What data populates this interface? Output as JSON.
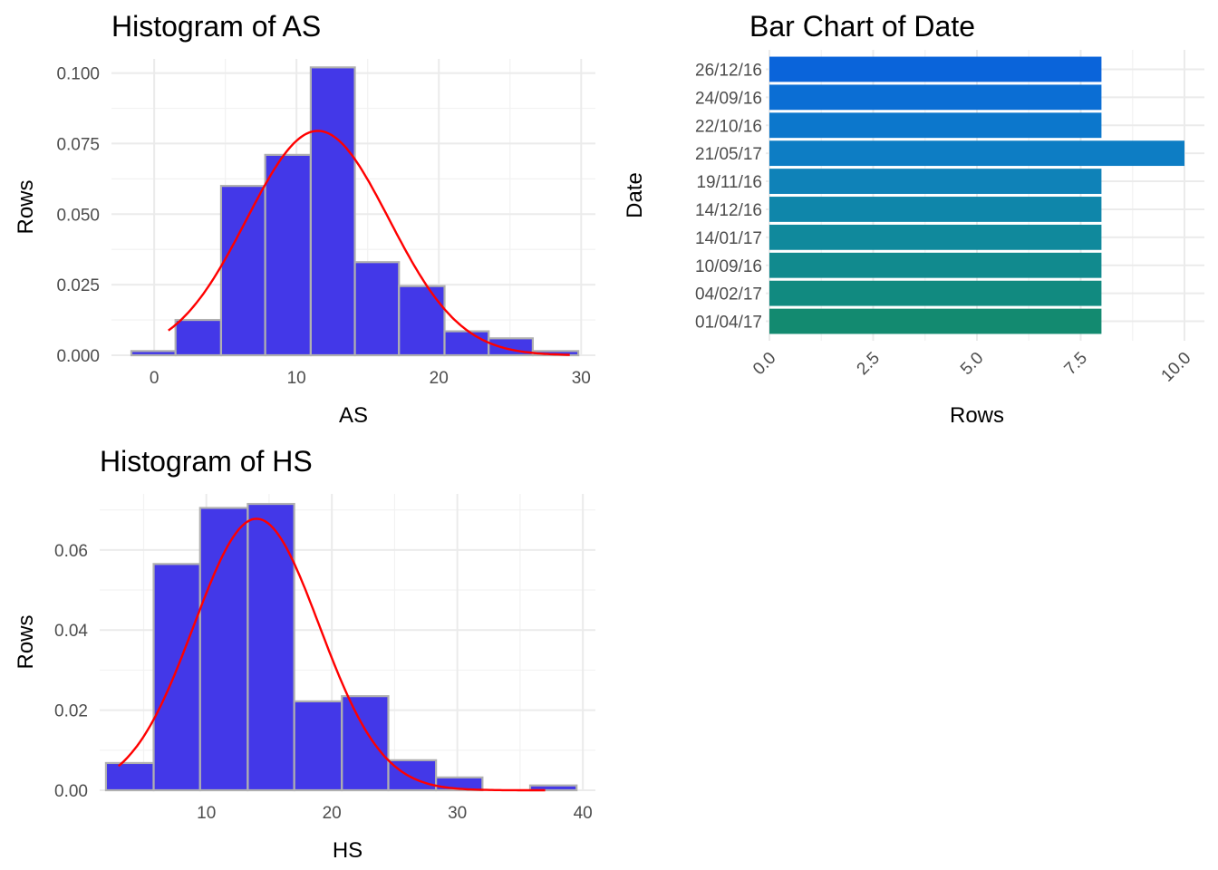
{
  "chart_data": [
    {
      "type": "histogram",
      "title": "Histogram of AS",
      "xlabel": "AS",
      "ylabel": "Rows",
      "xlim": [
        -3,
        31
      ],
      "ylim": [
        0,
        0.105
      ],
      "x_ticks": [
        0,
        10,
        20,
        30
      ],
      "y_ticks": [
        0.0,
        0.025,
        0.05,
        0.075,
        0.1
      ],
      "y_tick_labels": [
        "0.000",
        "0.025",
        "0.050",
        "0.075",
        "0.100"
      ],
      "bins": [
        {
          "x0": -1.6,
          "x1": 1.5,
          "value": 0.0015
        },
        {
          "x0": 1.5,
          "x1": 4.7,
          "value": 0.0125
        },
        {
          "x0": 4.7,
          "x1": 7.8,
          "value": 0.06
        },
        {
          "x0": 7.8,
          "x1": 11.0,
          "value": 0.071
        },
        {
          "x0": 11.0,
          "x1": 14.1,
          "value": 0.102
        },
        {
          "x0": 14.1,
          "x1": 17.2,
          "value": 0.033
        },
        {
          "x0": 17.2,
          "x1": 20.4,
          "value": 0.0245
        },
        {
          "x0": 20.4,
          "x1": 23.5,
          "value": 0.0085
        },
        {
          "x0": 23.5,
          "x1": 26.6,
          "value": 0.006
        },
        {
          "x0": 26.6,
          "x1": 29.8,
          "value": 0.0015
        }
      ],
      "density": {
        "mean": 11.5,
        "sd": 5.0,
        "peak": 0.0795,
        "x_from": 1.0,
        "x_to": 29.2
      },
      "bar_color": "#4338e8",
      "bar_border": "#b0b0b0",
      "curve_color": "#ff0000"
    },
    {
      "type": "bar",
      "orientation": "horizontal",
      "title": "Bar Chart of Date",
      "xlabel": "Rows",
      "ylabel": "Date",
      "xlim": [
        0,
        10
      ],
      "x_ticks": [
        0,
        2.5,
        5,
        7.5,
        10
      ],
      "x_tick_labels": [
        "0.0",
        "2.5",
        "5.0",
        "7.5",
        "10.0"
      ],
      "categories": [
        "26/12/16",
        "24/09/16",
        "22/10/16",
        "21/05/17",
        "19/11/16",
        "14/12/16",
        "14/01/17",
        "10/09/16",
        "04/02/17",
        "01/04/17"
      ],
      "values": [
        8,
        8,
        8,
        10,
        8,
        8,
        8,
        8,
        8,
        8
      ],
      "colors": [
        "#0a64da",
        "#0b6ed4",
        "#0c77cc",
        "#0d7dc4",
        "#0f82b8",
        "#0f86aa",
        "#10899c",
        "#118a8e",
        "#118a80",
        "#138a70"
      ]
    },
    {
      "type": "histogram",
      "title": "Histogram of HS",
      "xlabel": "HS",
      "ylabel": "Rows",
      "xlim": [
        1.5,
        41
      ],
      "ylim": [
        0,
        0.074
      ],
      "x_ticks": [
        10,
        20,
        30,
        40
      ],
      "y_ticks": [
        0.0,
        0.02,
        0.04,
        0.06
      ],
      "y_tick_labels": [
        "0.00",
        "0.02",
        "0.04",
        "0.06"
      ],
      "bins": [
        {
          "x0": 2.0,
          "x1": 5.8,
          "value": 0.0068
        },
        {
          "x0": 5.8,
          "x1": 9.5,
          "value": 0.0565
        },
        {
          "x0": 9.5,
          "x1": 13.3,
          "value": 0.0705
        },
        {
          "x0": 13.3,
          "x1": 17.0,
          "value": 0.0715
        },
        {
          "x0": 17.0,
          "x1": 20.8,
          "value": 0.0222
        },
        {
          "x0": 20.8,
          "x1": 24.5,
          "value": 0.0235
        },
        {
          "x0": 24.5,
          "x1": 28.3,
          "value": 0.0075
        },
        {
          "x0": 28.3,
          "x1": 32.0,
          "value": 0.0032
        },
        {
          "x0": 32.0,
          "x1": 35.8,
          "value": 0.0
        },
        {
          "x0": 35.8,
          "x1": 39.5,
          "value": 0.0012
        }
      ],
      "density": {
        "mean": 14.0,
        "sd": 5.0,
        "peak": 0.0678,
        "x_from": 3.0,
        "x_to": 37.0
      },
      "bar_color": "#4338e8",
      "bar_border": "#b0b0b0",
      "curve_color": "#ff0000"
    }
  ]
}
